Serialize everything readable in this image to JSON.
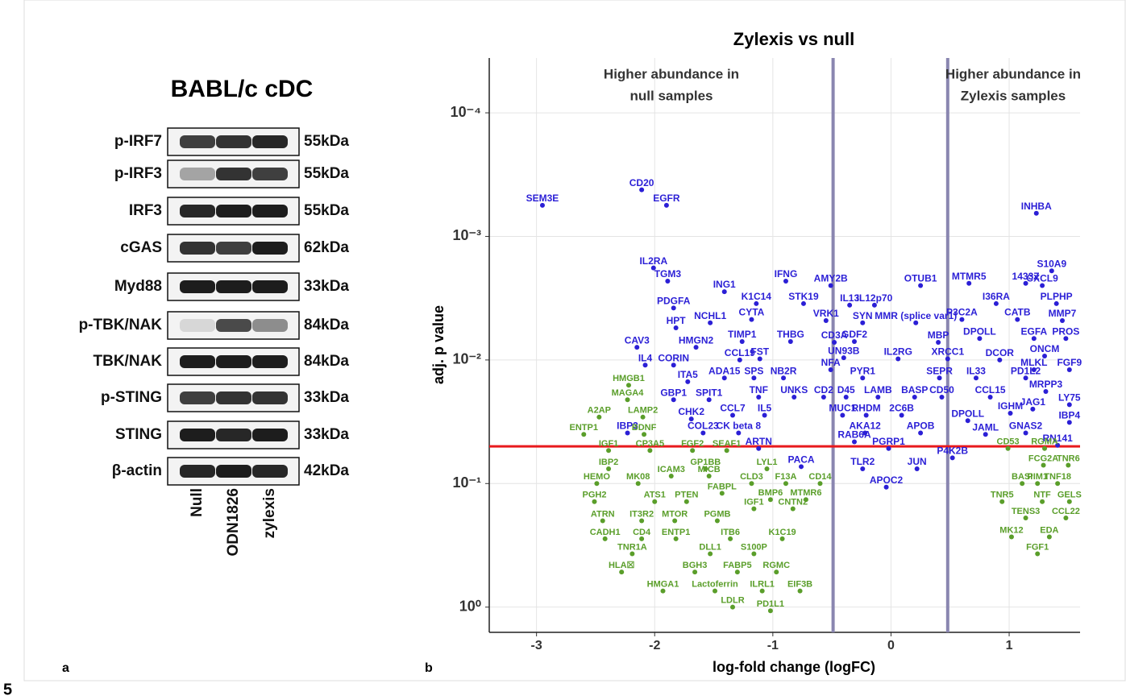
{
  "figure_number": "5",
  "panel_labels": [
    "a",
    "b"
  ],
  "blot": {
    "title": "BABL/c cDC",
    "rows": [
      {
        "label": "p-IRF7",
        "size": "55kDa"
      },
      {
        "label": "p-IRF3",
        "size": "55kDa"
      },
      {
        "label": "IRF3",
        "size": "55kDa"
      },
      {
        "label": "cGAS",
        "size": "62kDa"
      },
      {
        "label": "Myd88",
        "size": "33kDa"
      },
      {
        "label": "p-TBK/NAK",
        "size": "84kDa"
      },
      {
        "label": "TBK/NAK",
        "size": "84kDa"
      },
      {
        "label": "p-STING",
        "size": "33kDa"
      },
      {
        "label": "STING",
        "size": "33kDa"
      },
      {
        "label": "β-actin",
        "size": "42kDa"
      }
    ],
    "lanes": [
      "Null",
      "ODN1826",
      "zylexis"
    ]
  },
  "chart_data": {
    "type": "scatter",
    "title": "Zylexis vs null",
    "annotations": [
      [
        "Higher abundance in",
        "null samples"
      ],
      [
        "Higher abundance in",
        "Zylexis samples"
      ]
    ],
    "x_label": "log-fold change (logFC)",
    "y_label": "adj. p value",
    "xlim": [
      -3.4,
      1.6
    ],
    "xticks": [
      -3,
      -2,
      -1,
      0,
      1
    ],
    "ylim": [
      1.6,
      3.6e-05
    ],
    "log_y": true,
    "yticks": [
      {
        "value": 0.0001,
        "label": "10⁻⁴"
      },
      {
        "value": 0.001,
        "label": "10⁻³"
      },
      {
        "value": 0.01,
        "label": "10⁻²"
      },
      {
        "value": 0.1,
        "label": "10⁻¹"
      },
      {
        "value": 1,
        "label": "10⁰"
      }
    ],
    "grid": true,
    "vlines": [
      -0.49,
      0.48
    ],
    "vline_color": "#8a86b0",
    "hline": 0.05,
    "hline_color": "#e8191c",
    "series": [
      {
        "color": "#2b1fd6",
        "labels": [
          "SEM3E",
          "CD20",
          "EGFR",
          "IL2RA",
          "TGM3",
          "ING1",
          "INHBA",
          "1433Z",
          "S10A9",
          "CXCL9",
          "IFNG",
          "AMY2B",
          "K1C14",
          "STK19",
          "IL13",
          "PDGFA",
          "NCHL1",
          "CYTA",
          "VRK1",
          "SYN",
          "HPT",
          "TIMP1",
          "THBG",
          "CD3A",
          "GDF2",
          "CAV3",
          "HMGN2",
          "CORIN",
          "CCL19",
          "FST",
          "UN93B",
          "IL4",
          "NFA",
          "ITA5",
          "ADA15",
          "SPS",
          "NB2R",
          "PYR1",
          "GBP1",
          "SPIT1",
          "TNF",
          "UNKS",
          "CD2",
          "D45",
          "LAMB",
          "BASP",
          "CD50",
          "CHK2",
          "CCL7",
          "IL5",
          "MUC1",
          "RHDM",
          "2C6B",
          "COL23",
          "CK beta 8",
          "AKA12",
          "IBP3",
          "RAB6A",
          "ARTN",
          "PGRP1",
          "PACA",
          "TLR2",
          "APOC2",
          "OTUB1",
          "MTMR5",
          "IL12p70",
          "I36RA",
          "PLPHP",
          "MMR (splice var1)",
          "P3C2A",
          "CATB",
          "MMP7",
          "MBP",
          "DPOLL",
          "EGFA",
          "PROS",
          "IL2RG",
          "XRCC1",
          "DCOR",
          "ONCM",
          "SEPR",
          "IL33",
          "PD1L2",
          "MLKL",
          "FGF9",
          "CCL15",
          "MRPP3",
          "LY75",
          "IGHM",
          "JAG1",
          "IBP4",
          "DPOLL",
          "APOB",
          "JAML",
          "GNAS2",
          "RN141",
          "P4K2B",
          "JUN"
        ],
        "x": [
          -2.95,
          -2.11,
          -1.9,
          -2.01,
          -1.89,
          -1.41,
          1.23,
          1.14,
          1.36,
          1.28,
          -0.89,
          -0.51,
          -1.14,
          -0.74,
          -0.35,
          -1.84,
          -1.53,
          -1.18,
          -0.55,
          -0.24,
          -1.82,
          -1.26,
          -0.85,
          -0.48,
          -0.31,
          -2.15,
          -1.65,
          -1.84,
          -1.28,
          -1.11,
          -0.4,
          -2.08,
          -0.51,
          -1.72,
          -1.41,
          -1.16,
          -0.91,
          -0.24,
          -1.84,
          -1.54,
          -1.12,
          -0.82,
          -0.57,
          -0.38,
          -0.11,
          0.2,
          0.43,
          -1.69,
          -1.34,
          -1.07,
          -0.41,
          -0.21,
          0.09,
          -1.59,
          -1.29,
          -0.22,
          -2.23,
          -0.31,
          -1.12,
          -0.02,
          -0.76,
          -0.24,
          -0.04,
          0.25,
          0.66,
          -0.14,
          0.89,
          1.4,
          0.21,
          0.6,
          1.07,
          1.45,
          0.4,
          0.75,
          1.21,
          1.48,
          0.06,
          0.48,
          0.92,
          1.3,
          0.41,
          0.72,
          1.14,
          1.21,
          1.51,
          0.84,
          1.31,
          1.51,
          1.01,
          1.2,
          1.51,
          0.65,
          0.25,
          0.8,
          1.14,
          1.41,
          0.52,
          0.22
        ],
        "values": [
          0.00056,
          0.00042,
          0.00056,
          0.0018,
          0.0023,
          0.0028,
          0.00065,
          0.0024,
          0.0019,
          0.0025,
          0.0023,
          0.0025,
          0.0035,
          0.0035,
          0.0036,
          0.0038,
          0.005,
          0.0047,
          0.0048,
          0.005,
          0.0055,
          0.0071,
          0.0071,
          0.0072,
          0.0071,
          0.0079,
          0.0079,
          0.011,
          0.01,
          0.0098,
          0.0096,
          0.011,
          0.012,
          0.015,
          0.014,
          0.014,
          0.014,
          0.014,
          0.021,
          0.021,
          0.02,
          0.02,
          0.02,
          0.02,
          0.02,
          0.02,
          0.02,
          0.03,
          0.028,
          0.028,
          0.028,
          0.028,
          0.028,
          0.039,
          0.039,
          0.039,
          0.039,
          0.046,
          0.052,
          0.052,
          0.073,
          0.076,
          0.107,
          0.0025,
          0.0024,
          0.0036,
          0.0035,
          0.0035,
          0.005,
          0.0047,
          0.0047,
          0.0048,
          0.0072,
          0.0067,
          0.0067,
          0.0067,
          0.0098,
          0.0098,
          0.01,
          0.0093,
          0.014,
          0.014,
          0.014,
          0.012,
          0.012,
          0.02,
          0.018,
          0.023,
          0.027,
          0.025,
          0.032,
          0.031,
          0.039,
          0.04,
          0.039,
          0.049,
          0.062,
          0.076
        ]
      },
      {
        "color": "#5a9e2a",
        "labels": [
          "HMGB1",
          "MAGA4",
          "A2AP",
          "LAMP2",
          "ENTP1",
          "BDNF",
          "IGF1",
          "CP3A5",
          "FGF2",
          "SEAF1",
          "IBP2",
          "GP1BB",
          "LYL1",
          "ICAM3",
          "MICB",
          "CLD3",
          "HEMO",
          "MK08",
          "F13A",
          "CD14",
          "FABPL",
          "PGH2",
          "ATS1",
          "PTEN",
          "BMP6",
          "MTMR6",
          "ATRN",
          "IT3R2",
          "MTOR",
          "PGMB",
          "IGF1",
          "CNTN2",
          "CADH1",
          "CD4",
          "ENTP1",
          "ITB6",
          "K1C19",
          "TNR1A",
          "DLL1",
          "S100P",
          "HLA☒",
          "BGH3",
          "FABP5",
          "RGMC",
          "HMGA1",
          "Lactoferrin",
          "ILRL1",
          "EIF3B",
          "LDLR",
          "PD1L1",
          "CD53",
          "RGMA",
          "FCG2A",
          "TNR6",
          "BASI",
          "PIM1",
          "TNF18",
          "TNR5",
          "NTF",
          "GELS",
          "TENS3",
          "CCL22",
          "MK12",
          "EDA",
          "FGF1"
        ],
        "x": [
          -2.22,
          -2.23,
          -2.47,
          -2.1,
          -2.6,
          -2.09,
          -2.39,
          -2.04,
          -1.68,
          -1.39,
          -2.39,
          -1.57,
          -1.05,
          -1.86,
          -1.54,
          -1.18,
          -2.49,
          -2.14,
          -0.89,
          -0.6,
          -1.43,
          -2.51,
          -2.0,
          -1.73,
          -1.02,
          -0.72,
          -2.44,
          -2.11,
          -1.83,
          -1.47,
          -1.16,
          -0.83,
          -2.42,
          -2.11,
          -1.82,
          -1.36,
          -0.92,
          -2.19,
          -1.53,
          -1.16,
          -2.28,
          -1.66,
          -1.3,
          -0.97,
          -1.93,
          -1.49,
          -1.09,
          -0.77,
          -1.34,
          -1.02,
          0.99,
          1.3,
          1.29,
          1.5,
          1.11,
          1.24,
          1.41,
          0.94,
          1.28,
          1.51,
          1.14,
          1.48,
          1.02,
          1.34,
          1.24
        ],
        "values": [
          0.016,
          0.021,
          0.029,
          0.029,
          0.04,
          0.04,
          0.054,
          0.054,
          0.054,
          0.054,
          0.076,
          0.076,
          0.076,
          0.087,
          0.087,
          0.1,
          0.1,
          0.1,
          0.1,
          0.1,
          0.12,
          0.14,
          0.14,
          0.14,
          0.135,
          0.135,
          0.2,
          0.2,
          0.2,
          0.2,
          0.16,
          0.16,
          0.28,
          0.28,
          0.28,
          0.28,
          0.28,
          0.37,
          0.37,
          0.37,
          0.52,
          0.52,
          0.52,
          0.52,
          0.74,
          0.74,
          0.74,
          0.74,
          1.0,
          1.07,
          0.052,
          0.052,
          0.071,
          0.071,
          0.1,
          0.1,
          0.1,
          0.14,
          0.14,
          0.14,
          0.19,
          0.19,
          0.27,
          0.27,
          0.37
        ]
      }
    ]
  }
}
